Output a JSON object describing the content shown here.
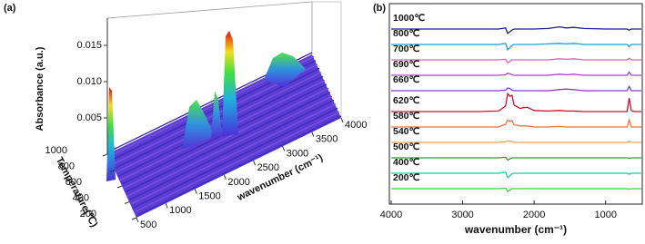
{
  "chart_data": [
    {
      "type": "surface3d",
      "title": "(a)",
      "zlabel": "Absorbance (a.u.)",
      "ylabel": "Temperature(℃)",
      "xlabel": "wavenumber (cm⁻¹)",
      "xlim": [
        500,
        4000
      ],
      "xticks": [
        500,
        1000,
        1500,
        2000,
        2500,
        3000,
        3500,
        4000
      ],
      "ylim": [
        200,
        1000
      ],
      "yticks": [
        200,
        400,
        600,
        800,
        1000
      ],
      "zlim": [
        0,
        0.015
      ],
      "zticks": [
        0.005,
        {
          "value": 0.01,
          "label": "0.010"
        },
        0.015
      ]
    },
    {
      "type": "line",
      "title": "(b)",
      "xlabel": "wavenumber (cm⁻¹)",
      "xlim": [
        4000,
        500
      ],
      "xticks": [
        4000,
        3000,
        2000,
        1000
      ],
      "x": [
        4000,
        3600,
        3200,
        2800,
        2500,
        2400,
        2370,
        2340,
        2310,
        2280,
        2200,
        2100,
        2000,
        1800,
        1650,
        1550,
        1450,
        1300,
        1000,
        800,
        700,
        670,
        640,
        600,
        500
      ],
      "series": [
        {
          "name": "1000℃",
          "color": "#1c1c9c",
          "values": [
            0,
            0,
            0,
            0,
            0,
            0.02,
            -0.08,
            -0.05,
            -0.02,
            0,
            0,
            0,
            0,
            0.01,
            0.04,
            0.02,
            0.03,
            0.01,
            0,
            0,
            0,
            -0.02,
            0,
            0,
            0
          ]
        },
        {
          "name": "800℃",
          "color": "#1a9ed8",
          "values": [
            0,
            0,
            0,
            0,
            0,
            0.02,
            -0.1,
            -0.06,
            -0.02,
            0,
            0,
            0,
            0,
            0.01,
            0.02,
            0.01,
            0.02,
            0,
            0,
            0,
            0,
            -0.04,
            0,
            0,
            0
          ]
        },
        {
          "name": "700℃",
          "color": "#e060b0",
          "values": [
            0,
            0,
            0,
            0,
            0,
            0.01,
            -0.05,
            -0.03,
            0,
            0,
            0,
            0,
            0,
            0,
            0.02,
            0.01,
            0.02,
            0,
            0,
            0,
            0,
            0.03,
            0,
            0,
            0
          ]
        },
        {
          "name": "690℃",
          "color": "#b040d0",
          "values": [
            0,
            0,
            0,
            0,
            0,
            0.01,
            0.04,
            0.03,
            0.01,
            0,
            0,
            0,
            0,
            0,
            0.02,
            0.01,
            0.02,
            0,
            0,
            0,
            0,
            0.06,
            0,
            0,
            0
          ]
        },
        {
          "name": "660℃",
          "color": "#8a3cc4",
          "values": [
            0,
            0,
            0,
            0,
            0,
            0.01,
            0.05,
            0.04,
            0.01,
            0,
            0,
            0,
            0,
            0,
            0.02,
            0.03,
            0.02,
            0,
            0,
            0,
            0,
            0.08,
            0,
            0,
            0
          ]
        },
        {
          "name": "620℃",
          "color": "#d01030",
          "values": [
            0,
            0,
            0,
            0,
            0.01,
            0.1,
            0.33,
            0.28,
            0.3,
            0.12,
            0.06,
            0.08,
            0.02,
            0.01,
            0.02,
            0.01,
            0.01,
            0,
            0,
            0,
            0,
            0.25,
            0.02,
            0,
            0
          ]
        },
        {
          "name": "580℃",
          "color": "#f07040",
          "values": [
            0,
            0,
            0,
            0,
            0,
            0.05,
            0.13,
            0.1,
            0.12,
            0.04,
            0.02,
            0.02,
            0,
            0,
            0.01,
            0,
            0,
            0,
            0,
            0,
            0,
            0.13,
            0,
            0,
            0
          ]
        },
        {
          "name": "540℃",
          "color": "#f0a060",
          "values": [
            0,
            0,
            0,
            0,
            0,
            0.01,
            0.03,
            0.02,
            0.02,
            0,
            0,
            0,
            0,
            0,
            0,
            0,
            0,
            0,
            0,
            0,
            0,
            0.02,
            0,
            0,
            0
          ]
        },
        {
          "name": "500℃",
          "color": "#20a040",
          "values": [
            0,
            0,
            0,
            0,
            0,
            0.01,
            -0.04,
            -0.02,
            0,
            0,
            0,
            0,
            0,
            0,
            0,
            0,
            0,
            0,
            0,
            0,
            0,
            -0.01,
            0,
            0,
            0
          ]
        },
        {
          "name": "400℃",
          "color": "#20c8a0",
          "values": [
            0,
            0,
            0,
            0,
            0,
            0.02,
            -0.08,
            -0.05,
            -0.01,
            0,
            0,
            0,
            0,
            0,
            0,
            0,
            0,
            0,
            0,
            0,
            0,
            -0.02,
            0,
            0,
            0
          ]
        },
        {
          "name": "200℃",
          "color": "#40d040",
          "values": [
            0,
            0,
            0,
            0,
            0,
            0.01,
            -0.05,
            -0.03,
            0,
            0,
            0,
            0,
            0,
            0,
            0,
            0,
            0,
            0,
            0,
            0,
            0,
            -0.01,
            0,
            0,
            0
          ]
        }
      ]
    }
  ]
}
